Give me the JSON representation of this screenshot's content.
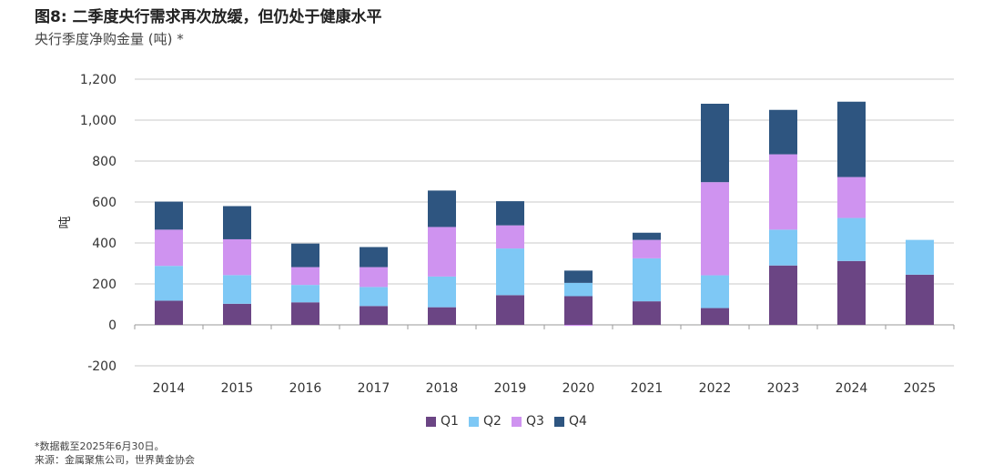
{
  "title": "图8: 二季度央行需求再次放缓，但仍处于健康水平",
  "subtitle": "央行季度净购金量 (吨) *",
  "footnote": "*数据截至2025年6月30日。",
  "source": "来源：金属聚焦公司，世界黄金协会",
  "chart_data": {
    "type": "bar",
    "stacked": true,
    "categories": [
      "2014",
      "2015",
      "2016",
      "2017",
      "2018",
      "2019",
      "2020",
      "2021",
      "2022",
      "2023",
      "2024",
      "2025"
    ],
    "ylabel": "吨",
    "ylim": [
      -200,
      1200
    ],
    "yticks": [
      -200,
      0,
      200,
      400,
      600,
      800,
      1000,
      1200
    ],
    "ytick_labels": [
      "-200",
      "0",
      "200",
      "400",
      "600",
      "800",
      "1,000",
      "1,200"
    ],
    "grid": true,
    "legend_position": "bottom",
    "series": [
      {
        "name": "Q1",
        "color": "#6b4584",
        "values": [
          118,
          103,
          110,
          92,
          86,
          145,
          140,
          115,
          82,
          290,
          312,
          245
        ]
      },
      {
        "name": "Q2",
        "color": "#7ec8f5",
        "values": [
          170,
          140,
          85,
          93,
          150,
          228,
          65,
          210,
          160,
          175,
          210,
          170
        ]
      },
      {
        "name": "Q3",
        "color": "#cf93f0",
        "values": [
          177,
          175,
          87,
          97,
          242,
          113,
          0,
          90,
          455,
          368,
          200,
          0
        ]
      },
      {
        "name": "Q4",
        "color": "#2e5580",
        "values": [
          137,
          162,
          115,
          98,
          178,
          118,
          60,
          35,
          383,
          217,
          368,
          0
        ]
      }
    ],
    "negative_values": {
      "Q3": [
        0,
        0,
        0,
        0,
        0,
        0,
        -5,
        0,
        0,
        0,
        0,
        0
      ]
    }
  }
}
